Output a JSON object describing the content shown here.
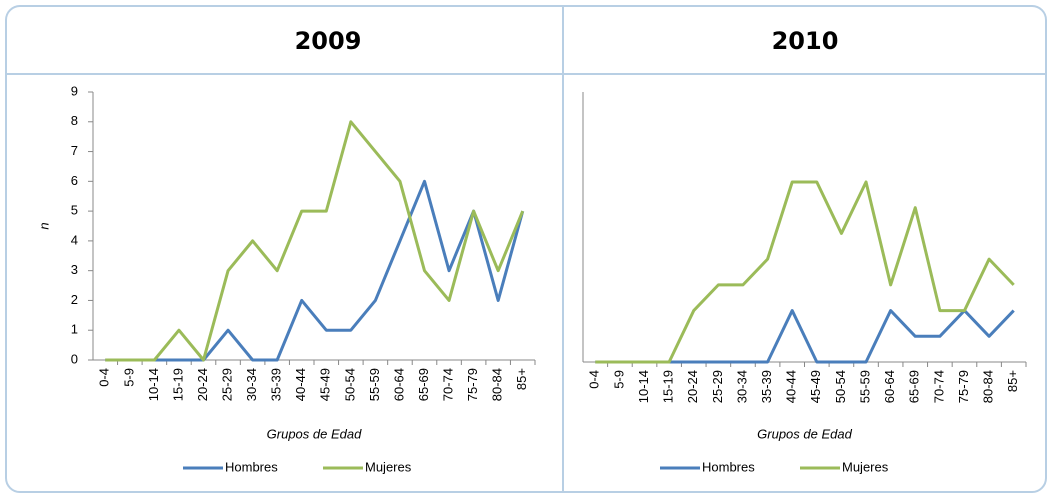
{
  "chart_data": [
    {
      "type": "line",
      "title": "2009",
      "xlabel": "Grupos de Edad",
      "ylabel": "n",
      "categories": [
        "0-4",
        "5-9",
        "10-14",
        "15-19",
        "20-24",
        "25-29",
        "30-34",
        "35-39",
        "40-44",
        "45-49",
        "50-54",
        "55-59",
        "60-64",
        "65-69",
        "70-74",
        "75-79",
        "80-84",
        "85+"
      ],
      "series": [
        {
          "name": "Hombres",
          "color": "#4a7ebb",
          "values": [
            0,
            0,
            0,
            0,
            0,
            1,
            0,
            0,
            2,
            1,
            1,
            2,
            4,
            6,
            3,
            5,
            2,
            5
          ]
        },
        {
          "name": "Mujeres",
          "color": "#9bbb59",
          "values": [
            0,
            0,
            0,
            1,
            0,
            3,
            4,
            3,
            5,
            5,
            8,
            7,
            6,
            3,
            2,
            5,
            3,
            5
          ]
        }
      ],
      "ylim": [
        0,
        9
      ],
      "yticks": [
        0,
        1,
        2,
        3,
        4,
        5,
        6,
        7,
        8,
        9
      ],
      "legend": "bottom"
    },
    {
      "type": "line",
      "title": "2010",
      "xlabel": "Grupos de Edad",
      "categories": [
        "0-4",
        "5-9",
        "10-14",
        "15-19",
        "20-24",
        "25-29",
        "30-34",
        "35-39",
        "40-44",
        "45-49",
        "50-54",
        "55-59",
        "60-64",
        "65-69",
        "70-74",
        "75-79",
        "80-84",
        "85+"
      ],
      "series": [
        {
          "name": "Hombres",
          "color": "#4a7ebb",
          "values": [
            0,
            0,
            0,
            0,
            0,
            0,
            0,
            0,
            2,
            0,
            0,
            0,
            2,
            1,
            1,
            2,
            1,
            2
          ]
        },
        {
          "name": "Mujeres",
          "color": "#9bbb59",
          "values": [
            0,
            0,
            0,
            0,
            2,
            3,
            3,
            4,
            7,
            7,
            5,
            7,
            3,
            6,
            2,
            2,
            4,
            3
          ]
        }
      ],
      "ylim": [
        0,
        10.5
      ],
      "legend": "bottom"
    }
  ]
}
